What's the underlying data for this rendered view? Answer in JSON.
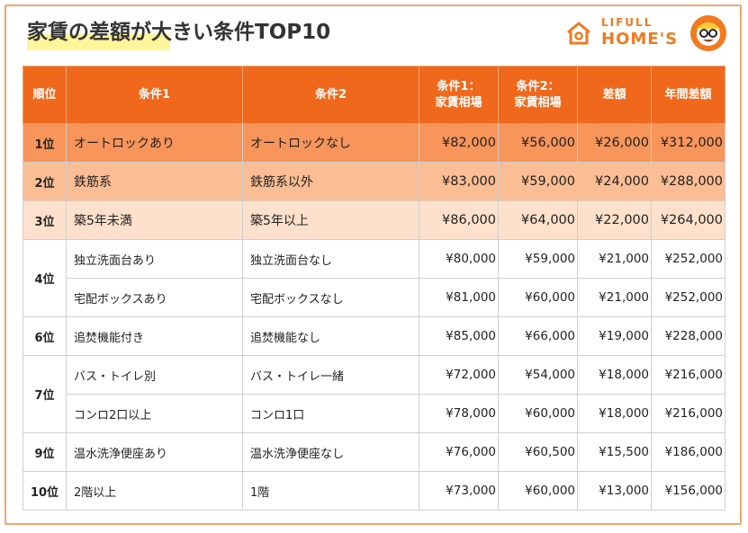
{
  "title": "家賃の差額が大きい条件TOP10",
  "logo": {
    "line1": "LIFULL",
    "line2": "HOME'S"
  },
  "colors": {
    "header": "#f0681b",
    "rank1": "#f7955a",
    "rank2": "#fbbd93",
    "rank3": "#fde1cc",
    "accent": "#f07a1e"
  },
  "table": {
    "headers": {
      "rank": "順位",
      "cond1": "条件1",
      "cond2": "条件2",
      "rent1_a": "条件1：",
      "rent1_b": "家賃相場",
      "rent2_a": "条件2：",
      "rent2_b": "家賃相場",
      "diff": "差額",
      "annual": "年間差額"
    },
    "rows": [
      {
        "rank": "1位",
        "cond1": "オートロックあり",
        "cond2": "オートロックなし",
        "rent1": "¥82,000",
        "rent2": "¥56,000",
        "diff": "¥26,000",
        "annual": "¥312,000"
      },
      {
        "rank": "2位",
        "cond1": "鉄筋系",
        "cond2": "鉄筋系以外",
        "rent1": "¥83,000",
        "rent2": "¥59,000",
        "diff": "¥24,000",
        "annual": "¥288,000"
      },
      {
        "rank": "3位",
        "cond1": "築5年未満",
        "cond2": "築5年以上",
        "rent1": "¥86,000",
        "rent2": "¥64,000",
        "diff": "¥22,000",
        "annual": "¥264,000"
      },
      {
        "rank": "4位",
        "cond1": "独立洗面台あり",
        "cond2": "独立洗面台なし",
        "rent1": "¥80,000",
        "rent2": "¥59,000",
        "diff": "¥21,000",
        "annual": "¥252,000"
      },
      {
        "rank": "",
        "cond1": "宅配ボックスあり",
        "cond2": "宅配ボックスなし",
        "rent1": "¥81,000",
        "rent2": "¥60,000",
        "diff": "¥21,000",
        "annual": "¥252,000"
      },
      {
        "rank": "6位",
        "cond1": "追焚機能付き",
        "cond2": "追焚機能なし",
        "rent1": "¥85,000",
        "rent2": "¥66,000",
        "diff": "¥19,000",
        "annual": "¥228,000"
      },
      {
        "rank": "7位",
        "cond1": "バス・トイレ別",
        "cond2": "バス・トイレ一緒",
        "rent1": "¥72,000",
        "rent2": "¥54,000",
        "diff": "¥18,000",
        "annual": "¥216,000"
      },
      {
        "rank": "",
        "cond1": "コンロ2口以上",
        "cond2": "コンロ1口",
        "rent1": "¥78,000",
        "rent2": "¥60,000",
        "diff": "¥18,000",
        "annual": "¥216,000"
      },
      {
        "rank": "9位",
        "cond1": "温水洗浄便座あり",
        "cond2": "温水洗浄便座なし",
        "rent1": "¥76,000",
        "rent2": "¥60,500",
        "diff": "¥15,500",
        "annual": "¥186,000"
      },
      {
        "rank": "10位",
        "cond1": "2階以上",
        "cond2": "1階",
        "rent1": "¥73,000",
        "rent2": "¥60,000",
        "diff": "¥13,000",
        "annual": "¥156,000"
      }
    ]
  }
}
